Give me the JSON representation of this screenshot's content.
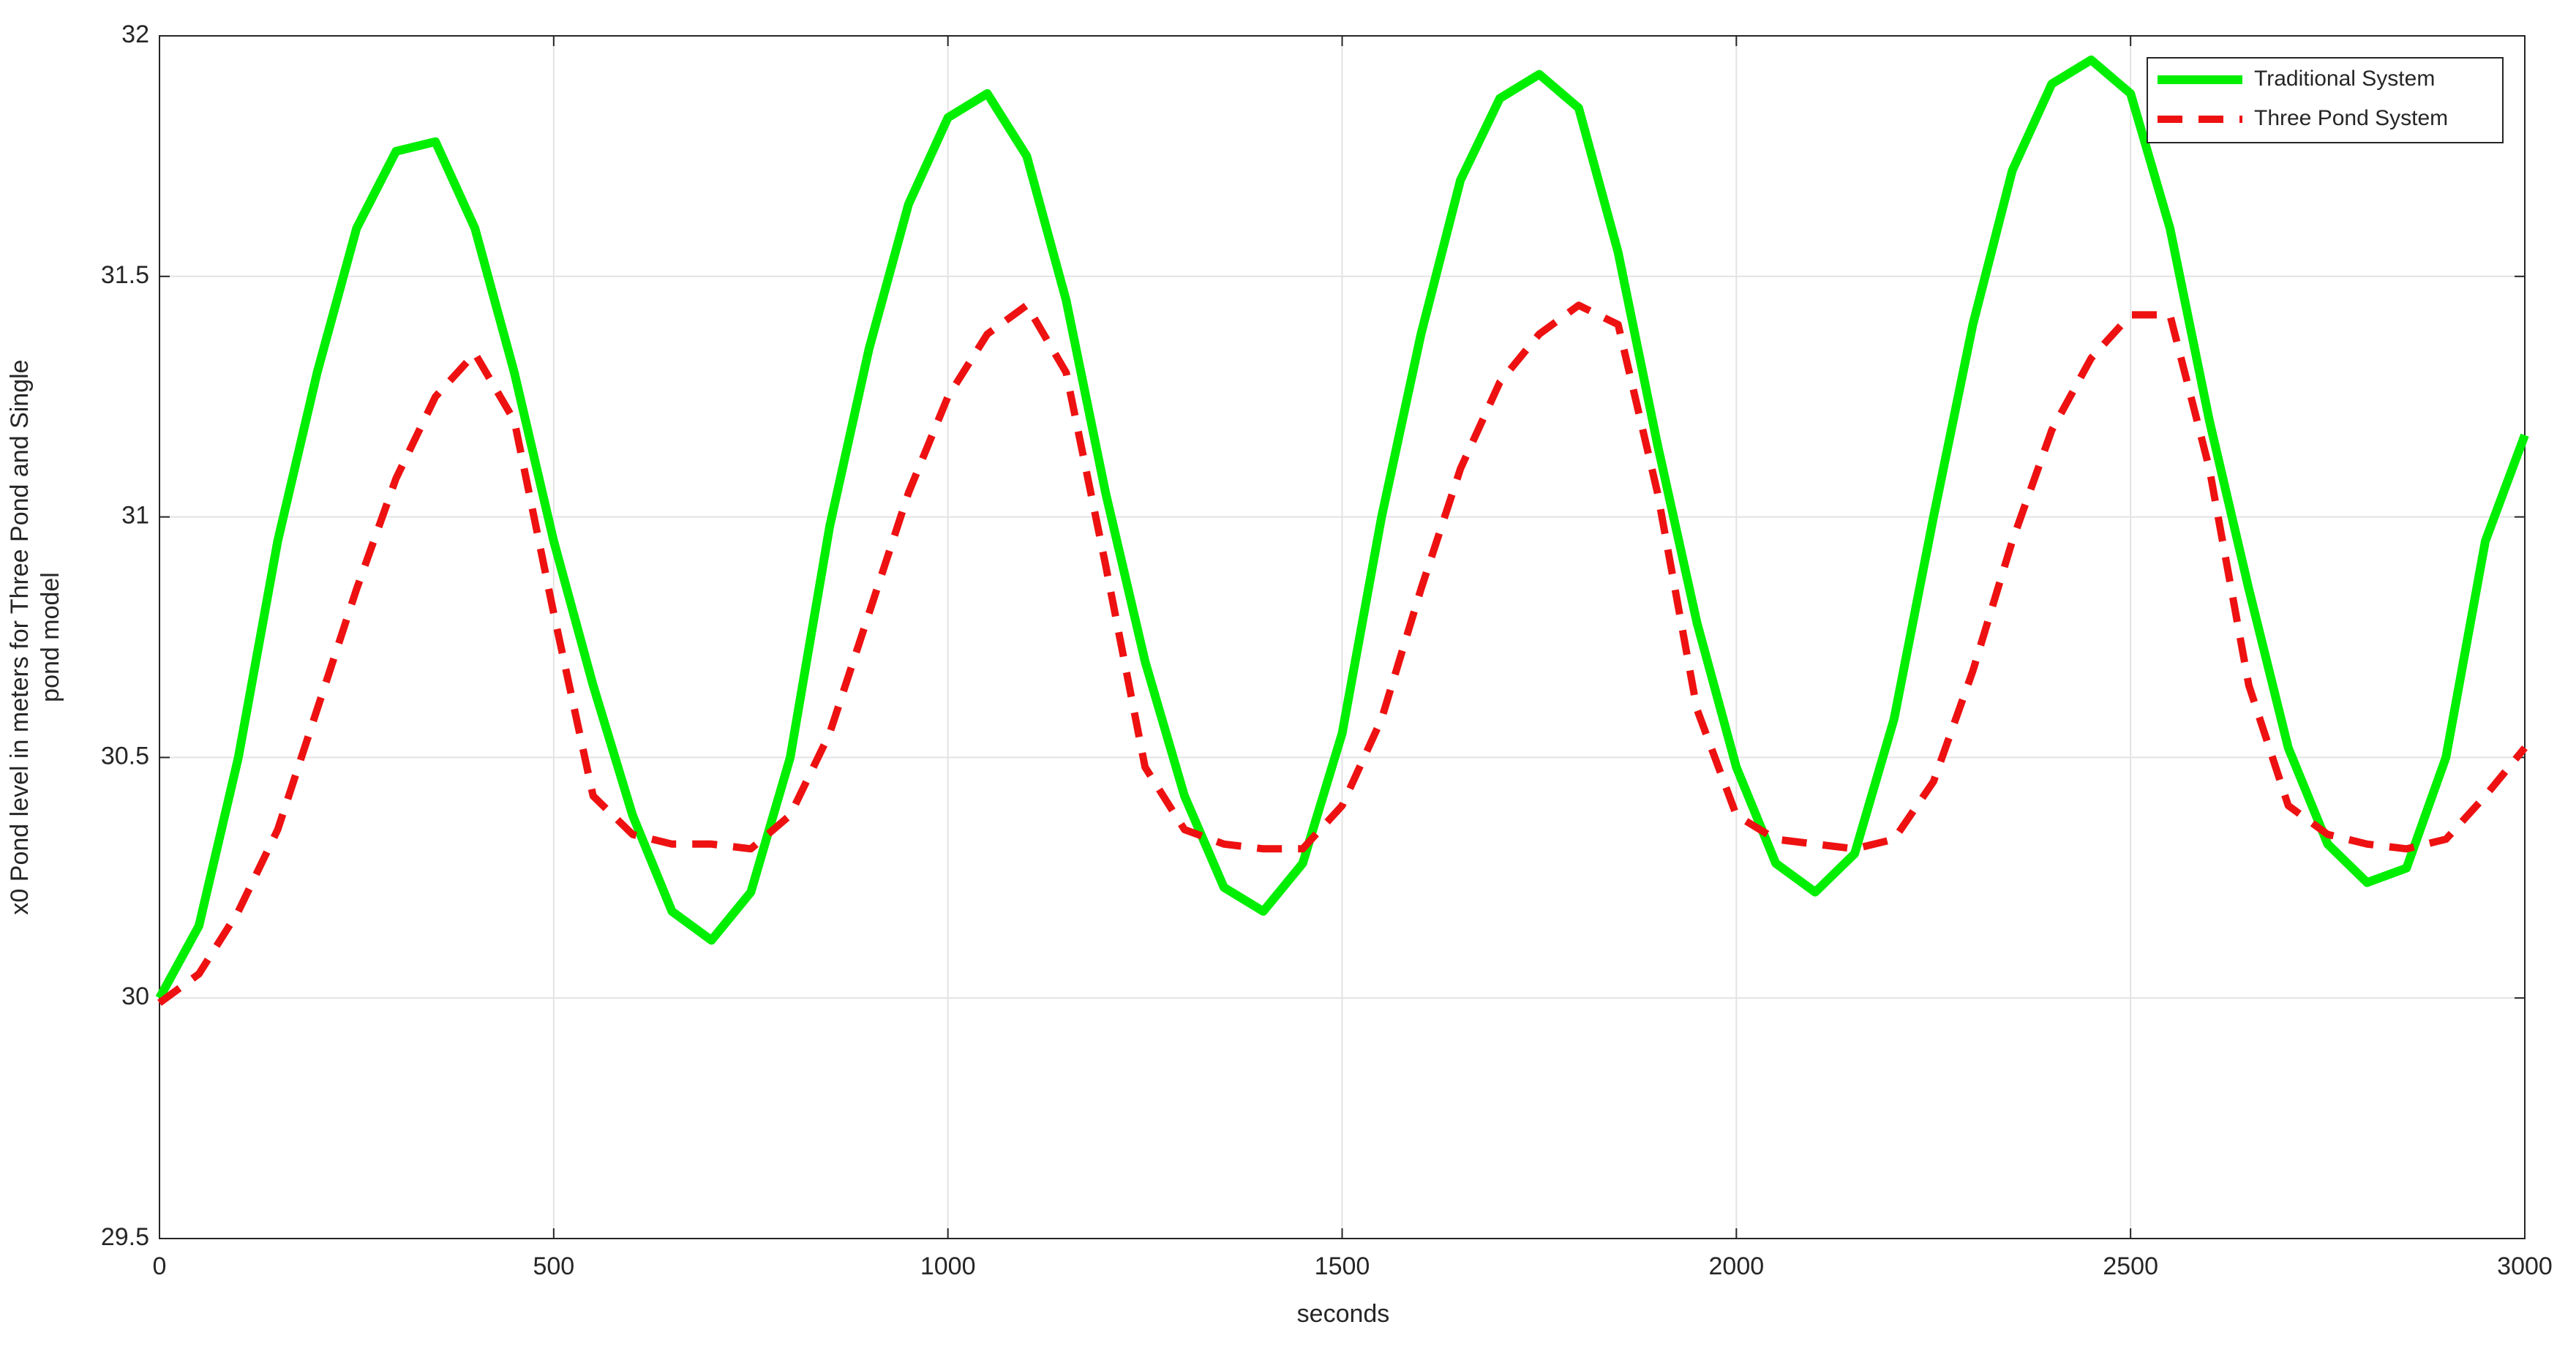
{
  "chart_data": {
    "type": "line",
    "xlabel": "seconds",
    "ylabel": [
      "x0 Pond level in meters for Three Pond and Single",
      "pond model"
    ],
    "x": [
      0,
      50,
      100,
      150,
      200,
      250,
      300,
      350,
      400,
      450,
      500,
      550,
      600,
      650,
      700,
      750,
      800,
      850,
      900,
      950,
      1000,
      1050,
      1100,
      1150,
      1200,
      1250,
      1300,
      1350,
      1400,
      1450,
      1500,
      1550,
      1600,
      1650,
      1700,
      1750,
      1800,
      1850,
      1900,
      1950,
      2000,
      2050,
      2100,
      2150,
      2200,
      2250,
      2300,
      2350,
      2400,
      2450,
      2500,
      2550,
      2600,
      2650,
      2700,
      2750,
      2800,
      2850,
      2900,
      2950,
      3000
    ],
    "series": [
      {
        "name": "Traditional System",
        "color": "#00ee00",
        "style": "solid",
        "values": [
          30.0,
          30.15,
          30.5,
          30.95,
          31.3,
          31.6,
          31.76,
          31.78,
          31.6,
          31.3,
          30.95,
          30.65,
          30.38,
          30.18,
          30.12,
          30.22,
          30.5,
          30.98,
          31.35,
          31.65,
          31.83,
          31.88,
          31.75,
          31.45,
          31.05,
          30.7,
          30.42,
          30.23,
          30.18,
          30.28,
          30.55,
          31.0,
          31.38,
          31.7,
          31.87,
          31.92,
          31.85,
          31.55,
          31.15,
          30.78,
          30.48,
          30.28,
          30.22,
          30.3,
          30.58,
          31.0,
          31.4,
          31.72,
          31.9,
          31.95,
          31.88,
          31.6,
          31.2,
          30.85,
          30.52,
          30.32,
          30.24,
          30.27,
          30.5,
          30.95,
          31.17
        ]
      },
      {
        "name": "Three Pond System",
        "color": "#ee1111",
        "style": "dashed",
        "values": [
          29.99,
          30.05,
          30.18,
          30.35,
          30.6,
          30.85,
          31.08,
          31.25,
          31.34,
          31.2,
          30.8,
          30.42,
          30.34,
          30.32,
          30.32,
          30.31,
          30.38,
          30.55,
          30.8,
          31.05,
          31.25,
          31.38,
          31.44,
          31.3,
          30.9,
          30.48,
          30.35,
          30.32,
          30.31,
          30.31,
          30.4,
          30.58,
          30.85,
          31.1,
          31.28,
          31.38,
          31.44,
          31.4,
          31.05,
          30.6,
          30.38,
          30.33,
          30.32,
          30.31,
          30.33,
          30.45,
          30.68,
          30.95,
          31.18,
          31.33,
          31.42,
          31.42,
          31.1,
          30.65,
          30.4,
          30.34,
          30.32,
          30.31,
          30.33,
          30.42,
          30.52
        ]
      }
    ],
    "xlim": [
      0,
      3000
    ],
    "xticks": [
      0,
      500,
      1000,
      1500,
      2000,
      2500,
      3000
    ],
    "ylim": [
      29.5,
      32
    ],
    "yticks": [
      29.5,
      30,
      30.5,
      31,
      31.5,
      32
    ],
    "grid": true,
    "legend": "northeast"
  }
}
